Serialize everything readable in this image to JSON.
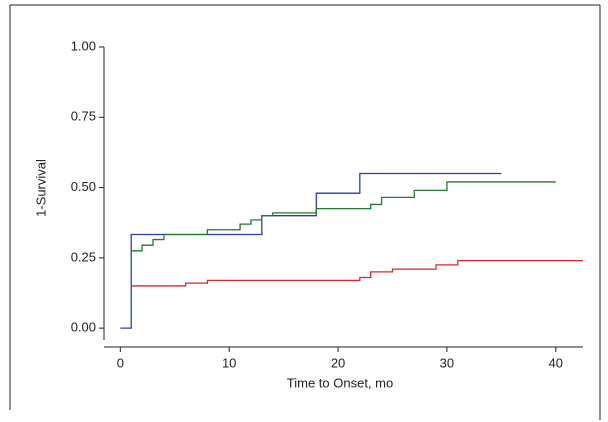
{
  "chart_data": {
    "type": "step",
    "xlabel": "Time to Onset, mo",
    "ylabel": "1-Survival",
    "xlim": [
      -1.5,
      42.5
    ],
    "ylim": [
      -0.06,
      1.0
    ],
    "xticks": [
      0,
      10,
      20,
      30,
      40
    ],
    "yticks": [
      {
        "value": 0,
        "label": "0.00"
      },
      {
        "value": 0.25,
        "label": "0.25"
      },
      {
        "value": 0.5,
        "label": "0.50"
      },
      {
        "value": 0.75,
        "label": "0.75"
      },
      {
        "value": 1,
        "label": "1.00"
      }
    ],
    "series": [
      {
        "color": "#2b3fa8",
        "x": [
          0,
          1,
          13,
          18,
          22,
          35
        ],
        "values": [
          0,
          0.333,
          0.4,
          0.48,
          0.55,
          0.55
        ]
      },
      {
        "color": "#1f7a2e",
        "x": [
          1,
          2,
          3,
          4,
          8,
          11,
          12,
          13,
          14,
          18,
          23,
          24,
          27,
          30,
          40
        ],
        "values": [
          0.275,
          0.295,
          0.315,
          0.333,
          0.35,
          0.37,
          0.385,
          0.4,
          0.41,
          0.425,
          0.44,
          0.465,
          0.49,
          0.52,
          0.52
        ]
      },
      {
        "color": "#d42a2a",
        "x": [
          1,
          6,
          8,
          22,
          23,
          25,
          29,
          31,
          42.5
        ],
        "values": [
          0.15,
          0.16,
          0.17,
          0.18,
          0.2,
          0.21,
          0.225,
          0.24,
          0.24
        ]
      }
    ]
  }
}
